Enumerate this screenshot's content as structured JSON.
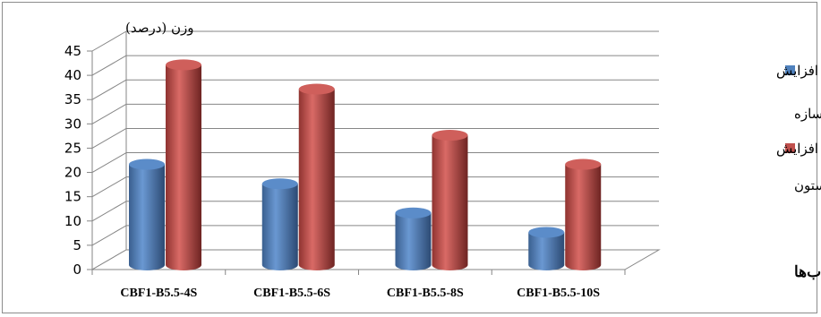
{
  "chart_data": {
    "type": "bar",
    "ylabel": "وزن (درصد)",
    "xlabel": "نام قاب‌ها",
    "ylim": [
      0,
      45
    ],
    "yticks": [
      0,
      5,
      10,
      15,
      20,
      25,
      30,
      35,
      40,
      45
    ],
    "categories": [
      "CBF1-B5.5-4S",
      "CBF1-B5.5-6S",
      "CBF1-B5.5-8S",
      "CBF1-B5.5-10S"
    ],
    "series": [
      {
        "name_lines": [
          "درصد افزایش",
          "وزن کل سازه"
        ],
        "color": "#4f81bd",
        "values": [
          20,
          16,
          10,
          6
        ]
      },
      {
        "name_lines": [
          "درصد افزایش",
          "وزن ستون"
        ],
        "color": "#c0504d",
        "values": [
          40.5,
          35.5,
          26,
          20
        ]
      }
    ],
    "grid": true,
    "legend_position": "right",
    "bar_shape": "3d-cylinder"
  }
}
